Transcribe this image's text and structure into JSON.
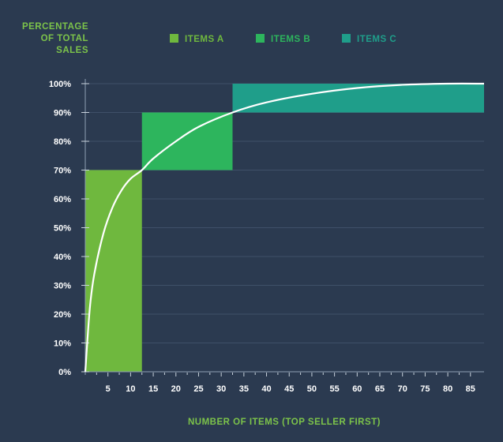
{
  "chart_data": {
    "type": "area",
    "ylabel_lines": [
      "PERCENTAGE",
      "OF TOTAL",
      "SALES"
    ],
    "xlabel": "NUMBER OF ITEMS (TOP SELLER FIRST)",
    "legend": [
      {
        "name": "ITEMS A",
        "color": "#6fb83e"
      },
      {
        "name": "ITEMS B",
        "color": "#2db55d"
      },
      {
        "name": "ITEMS C",
        "color": "#1f9e8a"
      }
    ],
    "y_ticks": [
      "0%",
      "10%",
      "20%",
      "30%",
      "40%",
      "50%",
      "60%",
      "70%",
      "80%",
      "90%",
      "100%"
    ],
    "x_ticks": [
      5,
      10,
      15,
      20,
      25,
      30,
      35,
      40,
      45,
      50,
      55,
      60,
      65,
      70,
      75,
      80,
      85
    ],
    "xlim": [
      0,
      88
    ],
    "ylim": [
      0,
      100
    ],
    "regions": [
      {
        "name": "ITEMS A",
        "x_start": 0,
        "x_end": 12.5,
        "y_bottom": 0,
        "y_top": 70
      },
      {
        "name": "ITEMS B",
        "x_start": 12.5,
        "x_end": 32.5,
        "y_bottom": 70,
        "y_top": 90
      },
      {
        "name": "ITEMS C",
        "x_start": 32.5,
        "x_end": 88,
        "y_bottom": 90,
        "y_top": 100
      }
    ],
    "curve": {
      "x": [
        0,
        1,
        2,
        4,
        6,
        8,
        10,
        12.5,
        15,
        20,
        25,
        32.5,
        40,
        50,
        60,
        70,
        80,
        88
      ],
      "y": [
        0,
        22,
        34,
        48,
        57,
        63,
        67,
        70,
        74,
        80,
        85,
        90,
        93.5,
        96.5,
        98.5,
        99.6,
        100,
        100
      ]
    },
    "grid": true,
    "legend_position": "top"
  }
}
